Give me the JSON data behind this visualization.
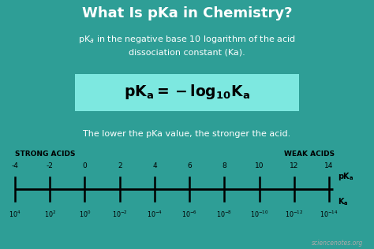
{
  "title": "What Is pKa in Chemistry?",
  "subtitle": "pK$_a$ in the negative base 10 logarithm of the acid\ndissociation constant (Ka).",
  "tagline": "The lower the pKa value, the stronger the acid.",
  "bg_color_top": "#2e9e96",
  "bg_color_bottom": "#7de8e0",
  "bg_color_footer": "#2e9e96",
  "formula_bg": "#7de8e0",
  "formula_border": "#7de8e0",
  "text_color_top": "white",
  "text_color_bottom": "black",
  "title_color": "white",
  "strong_acids_label": "STRONG ACIDS",
  "weak_acids_label": "WEAK ACIDS",
  "pka_ticks": [
    -4,
    -2,
    0,
    2,
    4,
    6,
    8,
    10,
    12,
    14
  ],
  "ka_exponents": [
    4,
    2,
    0,
    -2,
    -4,
    -6,
    -8,
    -10,
    -12,
    -14
  ],
  "watermark": "sciencenotes.org"
}
